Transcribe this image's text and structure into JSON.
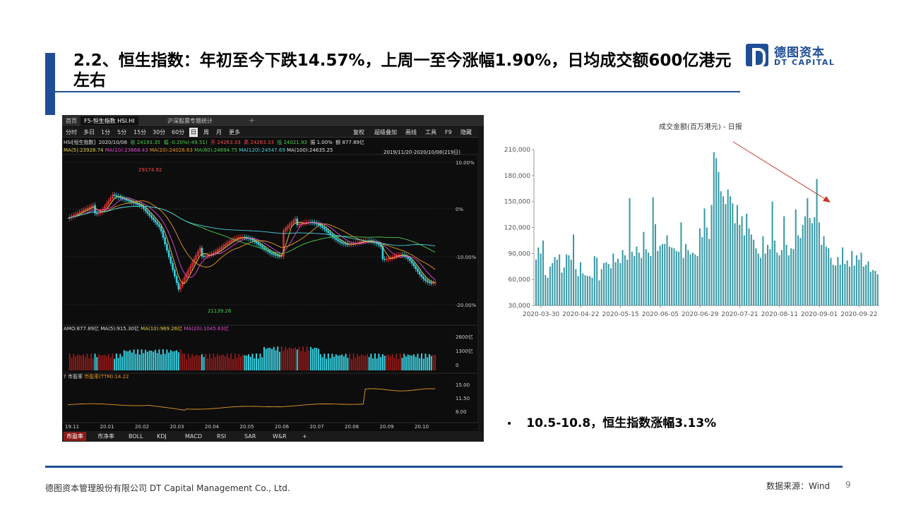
{
  "slide": {
    "title": "2.2、恒生指数：年初至今下跌14.57%，上周一至今涨幅1.90%，日均成交额600亿港元左右",
    "bullet": "10.5-10.8，恒生指数涨幅3.13%",
    "footer_company": "德图资本管理股份有限公司 DT Capital Management Co., Ltd.",
    "footer_source": "数据来源：Wind",
    "page_number": "9",
    "accent_color": "#1f4e96"
  },
  "logo": {
    "cn": "德图资本",
    "en": "DT CAPITAL"
  },
  "terminal": {
    "tabs": [
      "首页",
      "F5-恒生指数 HSI.HI",
      "沪深股票专题统计"
    ],
    "periods": [
      "分时",
      "多日",
      "1分",
      "5分",
      "15分",
      "30分",
      "60分",
      "日",
      "周",
      "月",
      "更多"
    ],
    "active_period": "日",
    "right_tools": [
      "复权",
      "超级叠加",
      "画线",
      "工具",
      "F9",
      "隐藏"
    ],
    "quote": {
      "name": "HSI[恒生指数]",
      "date": "2020/10/08",
      "close": "收 24193.35",
      "change": "幅 -0.20%(-49.51)",
      "open": "开 24263.33",
      "high": "高 24263.33",
      "low": "低 24021.93",
      "amplitude": "振 1.00%",
      "amount": "额 877.89亿"
    },
    "ma_line": {
      "ma5": "MA(5):23928.74",
      "ma10": "MA(10):23668.43",
      "ma20": "MA(20):24026.63",
      "ma60": "MA(60):24694.75",
      "ma120": "MA(120):24547.69",
      "ma100": "MA(100):24635.25"
    },
    "range_label": "2019/11/20-2020/10/08(219日)",
    "pct_ticks": [
      "10.00%",
      "0%",
      "-10.00%",
      "-20.00%"
    ],
    "high_mark": "29174.92",
    "low_mark": "21139.26",
    "amo_line": {
      "amo": "AMO:877.89亿",
      "ma5": "MA(5):915.30亿",
      "ma10": "MA(10):969.26亿",
      "ma20": "MA(20):1045.63亿"
    },
    "amo_ticks": [
      "2600亿",
      "1300亿",
      "0"
    ],
    "pe_label": "市盈率",
    "pe_value": "市盈率(TTM):14.22",
    "pe_ticks": [
      "15.00",
      "11.50",
      "8.00"
    ],
    "date_ticks": [
      "19.11",
      "20.01",
      "20.02",
      "20.03",
      "20.04",
      "20.05",
      "20.06",
      "20.07",
      "20.08",
      "20.09",
      "20.10"
    ],
    "bottom_tabs": [
      "市盈率",
      "市净率",
      "BOLL",
      "KDJ",
      "MACD",
      "RSI",
      "SAR",
      "W&R"
    ],
    "help_icon": "?"
  },
  "chart_data": {
    "type": "bar",
    "title": "成交金额(百万港元) - 日报",
    "xlabel": "",
    "ylabel": "",
    "ylim": [
      30000,
      210000
    ],
    "yticks": [
      "30,000",
      "60,000",
      "90,000",
      "120,000",
      "150,000",
      "180,000",
      "210,000"
    ],
    "xticks": [
      "2020-03-30",
      "2020-04-22",
      "2020-05-15",
      "2020-06-05",
      "2020-06-29",
      "2020-07-21",
      "2020-08-11",
      "2020-09-01",
      "2020-09-22"
    ],
    "values": [
      83000,
      97000,
      90000,
      105000,
      65000,
      62000,
      75000,
      79000,
      86000,
      83000,
      89000,
      68000,
      74000,
      89000,
      88000,
      83000,
      112000,
      72000,
      64000,
      80000,
      67000,
      65000,
      64000,
      64000,
      62000,
      87000,
      85000,
      59000,
      72000,
      79000,
      80000,
      78000,
      73000,
      90000,
      80000,
      84000,
      79000,
      94000,
      88000,
      83000,
      154000,
      92000,
      87000,
      98000,
      91000,
      85000,
      115000,
      95000,
      91000,
      87000,
      155000,
      124000,
      93000,
      99000,
      101000,
      101000,
      111000,
      98000,
      97000,
      96000,
      93000,
      92000,
      126000,
      85000,
      101000,
      94000,
      89000,
      91000,
      89000,
      87000,
      119000,
      109000,
      142000,
      120000,
      107000,
      146000,
      207000,
      200000,
      184000,
      162000,
      156000,
      147000,
      164000,
      156000,
      148000,
      125000,
      146000,
      123000,
      133000,
      111000,
      136000,
      119000,
      112000,
      106000,
      96000,
      90000,
      85000,
      110000,
      90000,
      100000,
      95000,
      150000,
      105000,
      91000,
      88000,
      94000,
      133000,
      100000,
      88000,
      96000,
      95000,
      141000,
      111000,
      108000,
      123000,
      133000,
      154000,
      131000,
      125000,
      132000,
      176000,
      126000,
      100000,
      110000,
      98000,
      96000,
      85000,
      77000,
      76000,
      86000,
      77000,
      97000,
      78000,
      82000,
      75000,
      93000,
      76000,
      88000,
      83000,
      91000,
      75000,
      77000,
      81000,
      69000,
      71000,
      70000,
      66000
    ]
  }
}
